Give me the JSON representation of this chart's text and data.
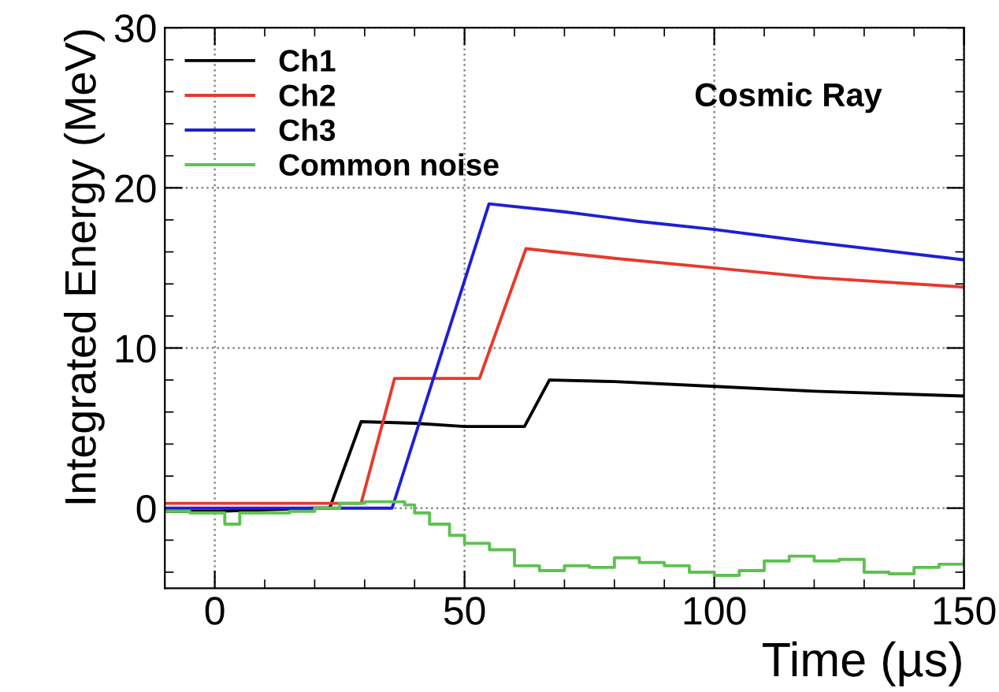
{
  "chart_data": {
    "type": "line",
    "xlabel": "Time (µs)",
    "ylabel": "Integrated Energy (MeV)",
    "xlim": [
      -10,
      150
    ],
    "ylim": [
      -5,
      30
    ],
    "xticks": [
      0,
      50,
      100,
      150
    ],
    "yticks": [
      0,
      10,
      20,
      30
    ],
    "grid": true,
    "legend": "top left",
    "marker": "none",
    "line_style": "solid",
    "annotations": [
      "Cosmic Ray"
    ],
    "series": [
      {
        "name": "Ch1",
        "color": "#000000",
        "x": [
          -10,
          0,
          10,
          20,
          23,
          29.3,
          40,
          50,
          62,
          67,
          80,
          100,
          120,
          150
        ],
        "values": [
          -0.2,
          -0.2,
          -0.1,
          0,
          0,
          5.4,
          5.3,
          5.1,
          5.1,
          8.0,
          7.9,
          7.6,
          7.3,
          7.0
        ]
      },
      {
        "name": "Ch2",
        "color": "#e8392c",
        "x": [
          -10,
          0,
          10,
          20,
          29.3,
          36,
          45,
          53,
          62.3,
          80,
          100,
          120,
          150
        ],
        "values": [
          0.3,
          0.3,
          0.3,
          0.3,
          0.3,
          8.1,
          8.1,
          8.1,
          16.2,
          15.6,
          15.0,
          14.4,
          13.8
        ]
      },
      {
        "name": "Ch3",
        "color": "#1f1fd6",
        "x": [
          -10,
          0,
          10,
          20,
          30,
          35.5,
          54.9,
          70,
          85,
          100,
          120,
          150
        ],
        "values": [
          0,
          0,
          0,
          0,
          0,
          0,
          19.0,
          18.5,
          17.9,
          17.4,
          16.6,
          15.5
        ]
      },
      {
        "name": "Common noise",
        "color": "#5dc24f",
        "type": "step",
        "x": [
          -10,
          -5,
          0,
          2,
          5,
          10,
          15,
          20,
          25,
          30,
          35,
          38,
          40,
          43,
          47,
          50,
          55,
          60,
          65,
          70,
          75,
          80,
          85,
          90,
          95,
          100,
          105,
          110,
          115,
          120,
          125,
          130,
          135,
          140,
          145,
          150
        ],
        "values": [
          -0.2,
          -0.3,
          -0.3,
          -1.0,
          -0.3,
          -0.3,
          -0.2,
          0,
          0.3,
          0.4,
          0.4,
          0.2,
          -0.3,
          -1.0,
          -1.7,
          -2.2,
          -2.6,
          -3.6,
          -3.9,
          -3.6,
          -3.7,
          -3.1,
          -3.4,
          -3.6,
          -4.0,
          -4.2,
          -3.9,
          -3.3,
          -3.0,
          -3.3,
          -3.2,
          -4.0,
          -4.1,
          -3.7,
          -3.5,
          -3.2
        ]
      }
    ]
  }
}
